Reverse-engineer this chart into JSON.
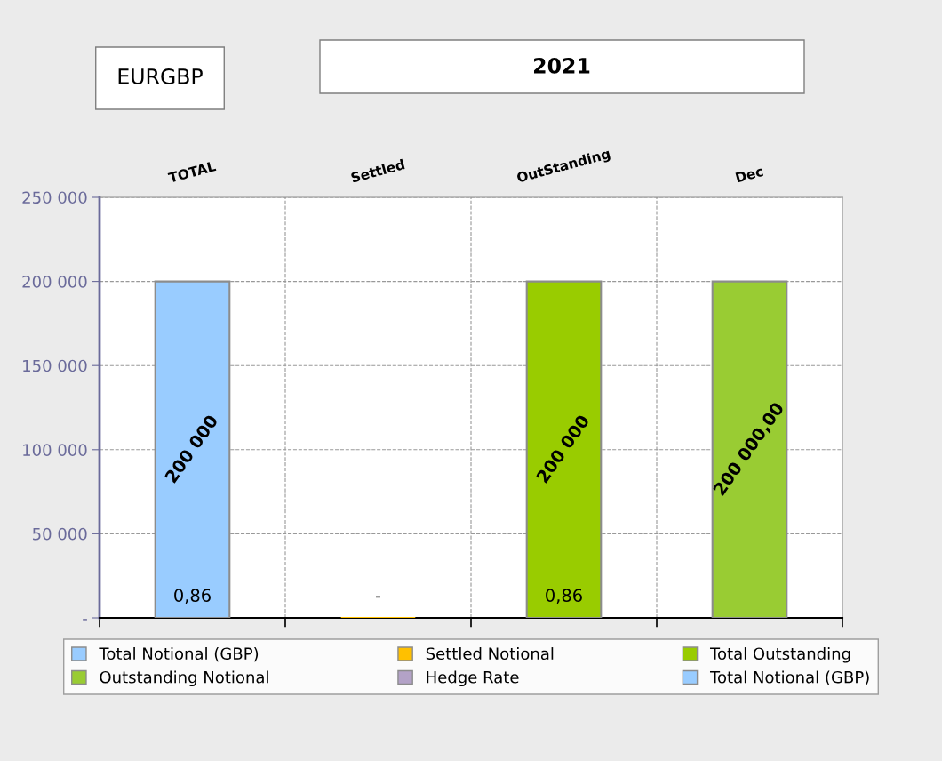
{
  "chart_data": {
    "type": "bar",
    "title": "2021",
    "subtitle": "EURGBP",
    "categories": [
      "TOTAL",
      "Settled",
      "OutStanding",
      "Dec"
    ],
    "series": [
      {
        "name": "Total Notional (GBP)",
        "color": "#99ccff",
        "values": [
          200000,
          null,
          null,
          null
        ],
        "value_labels": [
          "200 000",
          null,
          null,
          null
        ]
      },
      {
        "name": "Settled Notional",
        "color": "#ffc000",
        "values": [
          null,
          0,
          null,
          null
        ]
      },
      {
        "name": "Total Outstanding",
        "color": "#99cc00",
        "values": [
          null,
          null,
          200000,
          null
        ],
        "value_labels": [
          null,
          null,
          "200 000",
          null
        ]
      },
      {
        "name": "Outstanding Notional",
        "color": "#99cc33",
        "values": [
          null,
          null,
          null,
          200000
        ],
        "value_labels": [
          null,
          null,
          null,
          "200 000,00"
        ]
      },
      {
        "name": "Hedge Rate",
        "color": "#b3a2c7",
        "values": [
          null,
          null,
          null,
          null
        ]
      },
      {
        "name": "Total Notional (GBP)",
        "color": "#99ccff",
        "values": [
          null,
          null,
          null,
          null
        ]
      }
    ],
    "annotations": [
      "0,86",
      "-",
      "0,86"
    ],
    "ylim": [
      0,
      250000
    ],
    "yticks": [
      {
        "value": 0,
        "label": "-"
      },
      {
        "value": 50000,
        "label": "50 000"
      },
      {
        "value": 100000,
        "label": "100 000"
      },
      {
        "value": 150000,
        "label": "150 000"
      },
      {
        "value": 200000,
        "label": "200 000"
      },
      {
        "value": 250000,
        "label": "250 000"
      }
    ],
    "grid": true,
    "legend": "bottom"
  }
}
